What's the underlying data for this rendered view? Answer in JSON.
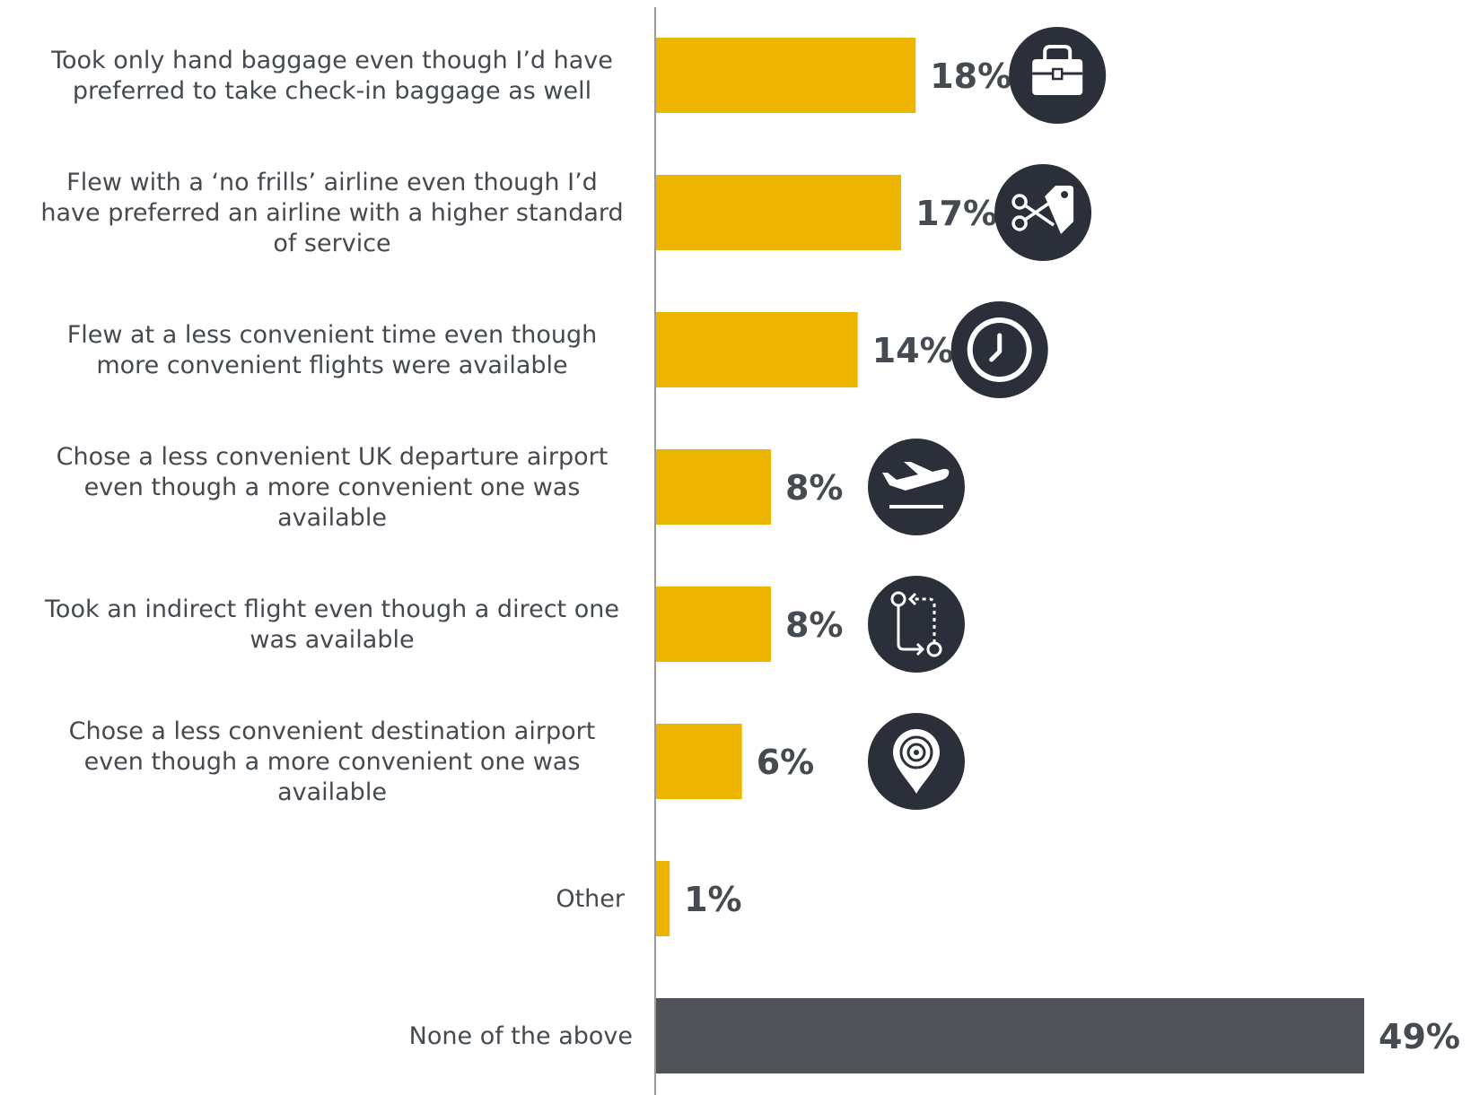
{
  "chart_data": {
    "type": "bar",
    "orientation": "horizontal",
    "title": "",
    "xlabel": "",
    "ylabel": "",
    "xlim": [
      0,
      49
    ],
    "grid": false,
    "legend": "none",
    "value_suffix": "%",
    "categories": [
      [
        "Took only hand baggage even though I’d have",
        "preferred to take check-in baggage as well"
      ],
      [
        "Flew with a ‘no frills’ airline even though I’d",
        "have preferred an airline with a higher standard",
        "of service"
      ],
      [
        "Flew at a less convenient time even though",
        "more convenient flights were available"
      ],
      [
        "Chose a less convenient UK departure airport",
        "even though a more convenient one was",
        "available"
      ],
      [
        "Took an indirect flight even though a direct one",
        "was available"
      ],
      [
        "Chose a less convenient destination airport",
        "even though a more convenient one was",
        "available"
      ],
      [
        "Other"
      ],
      [
        "None of the above"
      ]
    ],
    "values": [
      18,
      17,
      14,
      8,
      8,
      6,
      1,
      49
    ],
    "value_labels": [
      "18%",
      "17%",
      "14%",
      "8%",
      "8%",
      "6%",
      "1%",
      "49%"
    ],
    "bar_colors": [
      "#EDB500",
      "#EDB500",
      "#EDB500",
      "#EDB500",
      "#EDB500",
      "#EDB500",
      "#EDB500",
      "#505459"
    ],
    "icons": [
      "briefcase-icon",
      "scissors-tag-icon",
      "clock-icon",
      "plane-takeoff-icon",
      "indirect-route-icon",
      "location-pin-icon",
      null,
      null
    ],
    "icon_background": "#2A2F3A",
    "axis_color": "#9a9a9a",
    "label_color": "#444a50",
    "value_color": "#454b51"
  }
}
